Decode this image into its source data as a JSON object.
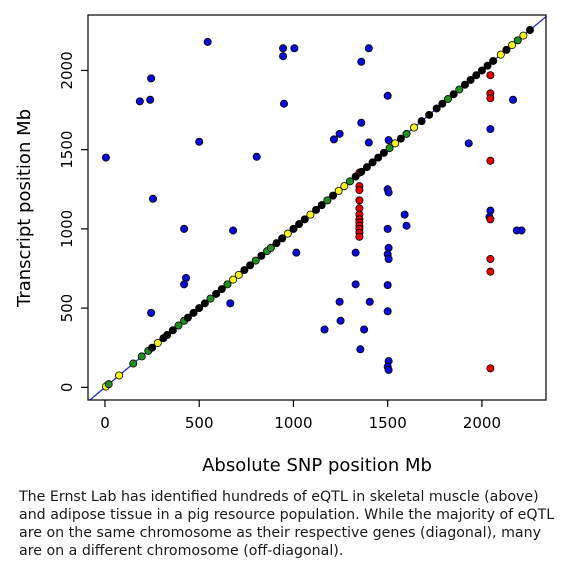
{
  "chart_data": {
    "type": "scatter",
    "xlabel": "Absolute SNP position Mb",
    "ylabel": "Transcript position Mb",
    "xlim": [
      -90,
      2340
    ],
    "ylim": [
      -80,
      2350
    ],
    "x_ticks": [
      0,
      500,
      1000,
      1500,
      2000
    ],
    "y_ticks": [
      0,
      500,
      1000,
      1500,
      2000
    ],
    "grid": false,
    "legend": "none",
    "diagonal_line": {
      "from": [
        -90,
        -90
      ],
      "to": [
        2340,
        2340
      ],
      "color": "#2222dd"
    },
    "colors": {
      "black": "#000000",
      "green": "#1f8f1f",
      "yellow": "#f5f51a",
      "blue": "#0a0ad8",
      "red": "#e80000"
    },
    "diagonal_points": [
      {
        "x": 5,
        "y": 5,
        "c": "yellow"
      },
      {
        "x": 20,
        "y": 20,
        "c": "green"
      },
      {
        "x": 75,
        "y": 75,
        "c": "yellow"
      },
      {
        "x": 150,
        "y": 150,
        "c": "green"
      },
      {
        "x": 195,
        "y": 195,
        "c": "green"
      },
      {
        "x": 230,
        "y": 230,
        "c": "green"
      },
      {
        "x": 250,
        "y": 250,
        "c": "black"
      },
      {
        "x": 280,
        "y": 280,
        "c": "yellow"
      },
      {
        "x": 310,
        "y": 310,
        "c": "black"
      },
      {
        "x": 330,
        "y": 330,
        "c": "black"
      },
      {
        "x": 360,
        "y": 360,
        "c": "black"
      },
      {
        "x": 390,
        "y": 390,
        "c": "green"
      },
      {
        "x": 420,
        "y": 420,
        "c": "green"
      },
      {
        "x": 440,
        "y": 440,
        "c": "black"
      },
      {
        "x": 470,
        "y": 470,
        "c": "black"
      },
      {
        "x": 500,
        "y": 500,
        "c": "black"
      },
      {
        "x": 530,
        "y": 530,
        "c": "black"
      },
      {
        "x": 560,
        "y": 560,
        "c": "green"
      },
      {
        "x": 590,
        "y": 590,
        "c": "black"
      },
      {
        "x": 620,
        "y": 620,
        "c": "black"
      },
      {
        "x": 650,
        "y": 650,
        "c": "green"
      },
      {
        "x": 680,
        "y": 680,
        "c": "yellow"
      },
      {
        "x": 710,
        "y": 710,
        "c": "yellow"
      },
      {
        "x": 740,
        "y": 740,
        "c": "black"
      },
      {
        "x": 770,
        "y": 770,
        "c": "black"
      },
      {
        "x": 800,
        "y": 800,
        "c": "green"
      },
      {
        "x": 830,
        "y": 830,
        "c": "black"
      },
      {
        "x": 860,
        "y": 860,
        "c": "green"
      },
      {
        "x": 880,
        "y": 880,
        "c": "green"
      },
      {
        "x": 910,
        "y": 910,
        "c": "black"
      },
      {
        "x": 940,
        "y": 940,
        "c": "black"
      },
      {
        "x": 970,
        "y": 970,
        "c": "yellow"
      },
      {
        "x": 1000,
        "y": 1000,
        "c": "black"
      },
      {
        "x": 1030,
        "y": 1030,
        "c": "black"
      },
      {
        "x": 1060,
        "y": 1060,
        "c": "black"
      },
      {
        "x": 1090,
        "y": 1090,
        "c": "yellow"
      },
      {
        "x": 1120,
        "y": 1120,
        "c": "black"
      },
      {
        "x": 1150,
        "y": 1150,
        "c": "black"
      },
      {
        "x": 1180,
        "y": 1180,
        "c": "green"
      },
      {
        "x": 1210,
        "y": 1210,
        "c": "black"
      },
      {
        "x": 1240,
        "y": 1240,
        "c": "yellow"
      },
      {
        "x": 1270,
        "y": 1270,
        "c": "yellow"
      },
      {
        "x": 1300,
        "y": 1300,
        "c": "green"
      },
      {
        "x": 1330,
        "y": 1330,
        "c": "black"
      },
      {
        "x": 1360,
        "y": 1360,
        "c": "black"
      },
      {
        "x": 1390,
        "y": 1390,
        "c": "black"
      },
      {
        "x": 1420,
        "y": 1420,
        "c": "black"
      },
      {
        "x": 1450,
        "y": 1450,
        "c": "black"
      },
      {
        "x": 1480,
        "y": 1480,
        "c": "black"
      },
      {
        "x": 1510,
        "y": 1510,
        "c": "green"
      },
      {
        "x": 1540,
        "y": 1540,
        "c": "yellow"
      },
      {
        "x": 1570,
        "y": 1570,
        "c": "black"
      },
      {
        "x": 1600,
        "y": 1600,
        "c": "green"
      },
      {
        "x": 1640,
        "y": 1640,
        "c": "yellow"
      },
      {
        "x": 1680,
        "y": 1680,
        "c": "black"
      },
      {
        "x": 1720,
        "y": 1720,
        "c": "black"
      },
      {
        "x": 1760,
        "y": 1760,
        "c": "black"
      },
      {
        "x": 1790,
        "y": 1790,
        "c": "black"
      },
      {
        "x": 1820,
        "y": 1820,
        "c": "green"
      },
      {
        "x": 1850,
        "y": 1850,
        "c": "black"
      },
      {
        "x": 1880,
        "y": 1880,
        "c": "green"
      },
      {
        "x": 1910,
        "y": 1910,
        "c": "black"
      },
      {
        "x": 1940,
        "y": 1940,
        "c": "black"
      },
      {
        "x": 1970,
        "y": 1970,
        "c": "black"
      },
      {
        "x": 2000,
        "y": 2000,
        "c": "black"
      },
      {
        "x": 2030,
        "y": 2030,
        "c": "black"
      },
      {
        "x": 2060,
        "y": 2060,
        "c": "black"
      },
      {
        "x": 2100,
        "y": 2100,
        "c": "yellow"
      },
      {
        "x": 2130,
        "y": 2130,
        "c": "black"
      },
      {
        "x": 2160,
        "y": 2160,
        "c": "yellow"
      },
      {
        "x": 2190,
        "y": 2190,
        "c": "green"
      },
      {
        "x": 2220,
        "y": 2220,
        "c": "yellow"
      },
      {
        "x": 2255,
        "y": 2255,
        "c": "black"
      }
    ],
    "off_diagonal_points": [
      {
        "x": 5,
        "y": 1450,
        "c": "blue"
      },
      {
        "x": 185,
        "y": 1805,
        "c": "blue"
      },
      {
        "x": 240,
        "y": 1815,
        "c": "blue"
      },
      {
        "x": 245,
        "y": 1950,
        "c": "blue"
      },
      {
        "x": 255,
        "y": 1190,
        "c": "blue"
      },
      {
        "x": 245,
        "y": 470,
        "c": "blue"
      },
      {
        "x": 420,
        "y": 1000,
        "c": "blue"
      },
      {
        "x": 430,
        "y": 690,
        "c": "blue"
      },
      {
        "x": 420,
        "y": 650,
        "c": "blue"
      },
      {
        "x": 500,
        "y": 1550,
        "c": "blue"
      },
      {
        "x": 545,
        "y": 2180,
        "c": "blue"
      },
      {
        "x": 680,
        "y": 990,
        "c": "blue"
      },
      {
        "x": 665,
        "y": 530,
        "c": "blue"
      },
      {
        "x": 805,
        "y": 1455,
        "c": "blue"
      },
      {
        "x": 945,
        "y": 2140,
        "c": "blue"
      },
      {
        "x": 945,
        "y": 2090,
        "c": "blue"
      },
      {
        "x": 950,
        "y": 1790,
        "c": "blue"
      },
      {
        "x": 1005,
        "y": 2140,
        "c": "blue"
      },
      {
        "x": 1015,
        "y": 850,
        "c": "blue"
      },
      {
        "x": 1165,
        "y": 365,
        "c": "blue"
      },
      {
        "x": 1215,
        "y": 1565,
        "c": "blue"
      },
      {
        "x": 1245,
        "y": 1600,
        "c": "blue"
      },
      {
        "x": 1245,
        "y": 540,
        "c": "blue"
      },
      {
        "x": 1250,
        "y": 420,
        "c": "blue"
      },
      {
        "x": 1330,
        "y": 650,
        "c": "blue"
      },
      {
        "x": 1330,
        "y": 850,
        "c": "blue"
      },
      {
        "x": 1360,
        "y": 2055,
        "c": "blue"
      },
      {
        "x": 1360,
        "y": 1670,
        "c": "blue"
      },
      {
        "x": 1355,
        "y": 240,
        "c": "blue"
      },
      {
        "x": 1375,
        "y": 365,
        "c": "blue"
      },
      {
        "x": 1400,
        "y": 2140,
        "c": "blue"
      },
      {
        "x": 1400,
        "y": 1545,
        "c": "blue"
      },
      {
        "x": 1405,
        "y": 540,
        "c": "blue"
      },
      {
        "x": 1500,
        "y": 1840,
        "c": "blue"
      },
      {
        "x": 1505,
        "y": 1560,
        "c": "blue"
      },
      {
        "x": 1500,
        "y": 1250,
        "c": "blue"
      },
      {
        "x": 1505,
        "y": 1230,
        "c": "blue"
      },
      {
        "x": 1500,
        "y": 1000,
        "c": "blue"
      },
      {
        "x": 1505,
        "y": 880,
        "c": "blue"
      },
      {
        "x": 1500,
        "y": 840,
        "c": "blue"
      },
      {
        "x": 1505,
        "y": 810,
        "c": "blue"
      },
      {
        "x": 1500,
        "y": 645,
        "c": "blue"
      },
      {
        "x": 1500,
        "y": 480,
        "c": "blue"
      },
      {
        "x": 1505,
        "y": 165,
        "c": "blue"
      },
      {
        "x": 1500,
        "y": 130,
        "c": "blue"
      },
      {
        "x": 1505,
        "y": 110,
        "c": "blue"
      },
      {
        "x": 1590,
        "y": 1090,
        "c": "blue"
      },
      {
        "x": 1600,
        "y": 1020,
        "c": "blue"
      },
      {
        "x": 1930,
        "y": 1540,
        "c": "blue"
      },
      {
        "x": 2045,
        "y": 1630,
        "c": "blue"
      },
      {
        "x": 2045,
        "y": 1115,
        "c": "blue"
      },
      {
        "x": 2040,
        "y": 1075,
        "c": "blue"
      },
      {
        "x": 2165,
        "y": 1815,
        "c": "blue"
      },
      {
        "x": 2185,
        "y": 990,
        "c": "blue"
      },
      {
        "x": 2210,
        "y": 990,
        "c": "blue"
      },
      {
        "x": 1350,
        "y": 1270,
        "c": "red"
      },
      {
        "x": 1350,
        "y": 1245,
        "c": "red"
      },
      {
        "x": 1350,
        "y": 1180,
        "c": "red"
      },
      {
        "x": 1350,
        "y": 1130,
        "c": "red"
      },
      {
        "x": 1350,
        "y": 1090,
        "c": "red"
      },
      {
        "x": 1350,
        "y": 1060,
        "c": "red"
      },
      {
        "x": 1350,
        "y": 1040,
        "c": "red"
      },
      {
        "x": 1350,
        "y": 1020,
        "c": "red"
      },
      {
        "x": 1350,
        "y": 1000,
        "c": "red"
      },
      {
        "x": 1350,
        "y": 975,
        "c": "red"
      },
      {
        "x": 1350,
        "y": 950,
        "c": "red"
      },
      {
        "x": 1350,
        "y": 1355,
        "c": "red"
      },
      {
        "x": 2045,
        "y": 1970,
        "c": "red"
      },
      {
        "x": 2045,
        "y": 1855,
        "c": "red"
      },
      {
        "x": 2045,
        "y": 1825,
        "c": "red"
      },
      {
        "x": 2045,
        "y": 1430,
        "c": "red"
      },
      {
        "x": 2045,
        "y": 1060,
        "c": "red"
      },
      {
        "x": 2045,
        "y": 810,
        "c": "red"
      },
      {
        "x": 2045,
        "y": 730,
        "c": "red"
      },
      {
        "x": 2045,
        "y": 120,
        "c": "red"
      }
    ]
  },
  "caption": "The Ernst Lab has identified hundreds of eQTL in skeletal muscle (above) and adipose tissue in a pig resource population. While the majority of eQTL are on the same chromosome as their respective genes (diagonal), many are on a different chromosome (off-diagonal)."
}
